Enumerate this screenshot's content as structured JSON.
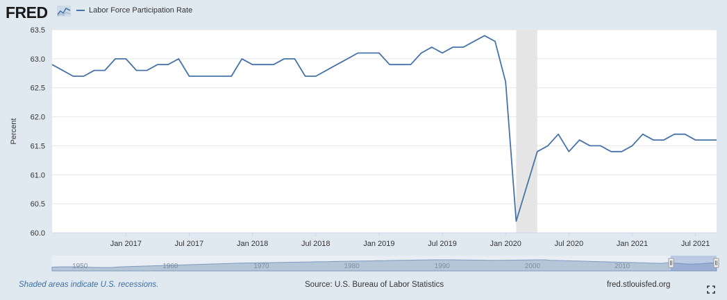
{
  "brand": {
    "logo_text": "FRED"
  },
  "legend": {
    "label": "Labor Force Participation Rate",
    "color": "#4572a7"
  },
  "footer": {
    "recession_note": "Shaded areas indicate U.S. recessions.",
    "source": "Source: U.S. Bureau of Labor Statistics",
    "site": "fred.stlouisfed.org"
  },
  "icons": {
    "fullscreen": "fullscreen-icon",
    "logo_graph": "chart-line-icon"
  },
  "chart_data": {
    "type": "line",
    "ylabel": "Percent",
    "ylim": [
      60.0,
      63.5
    ],
    "yticks": [
      "60.0",
      "60.5",
      "61.0",
      "61.5",
      "62.0",
      "62.5",
      "63.0",
      "63.5"
    ],
    "xticks": [
      "Jan 2017",
      "Jul 2017",
      "Jan 2018",
      "Jul 2018",
      "Jan 2019",
      "Jul 2019",
      "Jan 2020",
      "Jul 2020",
      "Jan 2021",
      "Jul 2021"
    ],
    "xrange": [
      "2016-06",
      "2021-09"
    ],
    "recession_shading": {
      "start": "2020-02",
      "end": "2020-04",
      "color": "#e5e5e5"
    },
    "grid": true,
    "series": [
      {
        "name": "Labor Force Participation Rate",
        "color": "#4572a7",
        "x": [
          "2016-06",
          "2016-07",
          "2016-08",
          "2016-09",
          "2016-10",
          "2016-11",
          "2016-12",
          "2017-01",
          "2017-02",
          "2017-03",
          "2017-04",
          "2017-05",
          "2017-06",
          "2017-07",
          "2017-08",
          "2017-09",
          "2017-10",
          "2017-11",
          "2017-12",
          "2018-01",
          "2018-02",
          "2018-03",
          "2018-04",
          "2018-05",
          "2018-06",
          "2018-07",
          "2018-08",
          "2018-09",
          "2018-10",
          "2018-11",
          "2018-12",
          "2019-01",
          "2019-02",
          "2019-03",
          "2019-04",
          "2019-05",
          "2019-06",
          "2019-07",
          "2019-08",
          "2019-09",
          "2019-10",
          "2019-11",
          "2019-12",
          "2020-01",
          "2020-02",
          "2020-03",
          "2020-04",
          "2020-05",
          "2020-06",
          "2020-07",
          "2020-08",
          "2020-09",
          "2020-10",
          "2020-11",
          "2020-12",
          "2021-01",
          "2021-02",
          "2021-03",
          "2021-04",
          "2021-05",
          "2021-06",
          "2021-07",
          "2021-08",
          "2021-09"
        ],
        "values": [
          62.9,
          62.8,
          62.7,
          62.7,
          62.8,
          62.8,
          63.0,
          63.0,
          62.8,
          62.8,
          62.9,
          62.9,
          63.0,
          62.7,
          62.7,
          62.7,
          62.7,
          62.7,
          63.0,
          62.9,
          62.9,
          62.9,
          63.0,
          63.0,
          62.7,
          62.7,
          62.8,
          62.9,
          63.0,
          63.1,
          63.1,
          63.1,
          62.9,
          62.9,
          62.9,
          63.1,
          63.2,
          63.1,
          63.2,
          63.2,
          63.3,
          63.4,
          63.3,
          62.6,
          60.2,
          60.8,
          61.4,
          61.5,
          61.7,
          61.4,
          61.6,
          61.5,
          61.5,
          61.4,
          61.4,
          61.5,
          61.7,
          61.6,
          61.6,
          61.7,
          61.7,
          61.6,
          61.6,
          61.6
        ]
      }
    ],
    "navigator": {
      "labels": [
        "1950",
        "1960",
        "1970",
        "1980",
        "1990",
        "2000",
        "2010"
      ]
    }
  }
}
